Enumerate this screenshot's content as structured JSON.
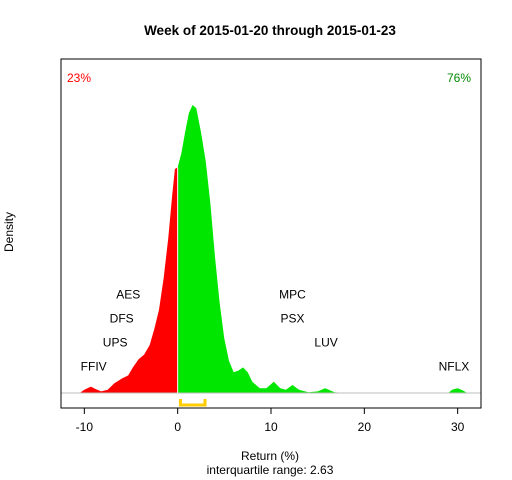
{
  "chart_data": {
    "type": "area",
    "title": "Week of 2015-01-20 through 2015-01-23",
    "xlabel": "Return (%)",
    "subxlabel": "interquartile range: 2.63",
    "ylabel": "Density",
    "xlim": [
      -12.5,
      32.5
    ],
    "ylim": [
      0,
      0.2
    ],
    "xticks": [
      -10,
      0,
      10,
      20,
      30
    ],
    "xtick_labels": [
      "-10",
      "0",
      "10",
      "20",
      "30"
    ],
    "split_at": 0,
    "negative_share": "23%",
    "positive_share": "76%",
    "negative_color": "#ff0000",
    "positive_color": "#00e600",
    "iqr": [
      0.3,
      2.93
    ],
    "iqr_color": "#ffcc00",
    "density": [
      [
        -10.5,
        0
      ],
      [
        -10,
        0.002
      ],
      [
        -9.3,
        0.004
      ],
      [
        -8.8,
        0.0025
      ],
      [
        -8.2,
        0.001
      ],
      [
        -7.5,
        0.002
      ],
      [
        -6.8,
        0.006
      ],
      [
        -6.0,
        0.009
      ],
      [
        -5.3,
        0.011
      ],
      [
        -4.8,
        0.016
      ],
      [
        -4.2,
        0.021
      ],
      [
        -3.6,
        0.024
      ],
      [
        -3.0,
        0.03
      ],
      [
        -2.5,
        0.04
      ],
      [
        -2.0,
        0.052
      ],
      [
        -1.5,
        0.072
      ],
      [
        -1.0,
        0.097
      ],
      [
        -0.6,
        0.123
      ],
      [
        -0.3,
        0.14
      ],
      [
        0,
        0.141
      ],
      [
        0.4,
        0.15
      ],
      [
        0.8,
        0.163
      ],
      [
        1.2,
        0.175
      ],
      [
        1.6,
        0.18
      ],
      [
        2.0,
        0.178
      ],
      [
        2.5,
        0.163
      ],
      [
        3.0,
        0.145
      ],
      [
        3.5,
        0.119
      ],
      [
        4.0,
        0.085
      ],
      [
        4.5,
        0.056
      ],
      [
        5.0,
        0.034
      ],
      [
        5.5,
        0.02
      ],
      [
        6.0,
        0.013
      ],
      [
        6.5,
        0.014
      ],
      [
        7.0,
        0.016
      ],
      [
        7.5,
        0.013
      ],
      [
        8.0,
        0.007
      ],
      [
        8.8,
        0.003
      ],
      [
        9.5,
        0.003
      ],
      [
        10.3,
        0.007
      ],
      [
        11.0,
        0.003
      ],
      [
        11.6,
        0.002
      ],
      [
        12.3,
        0.005
      ],
      [
        13.0,
        0.002
      ],
      [
        14.0,
        0.0005
      ],
      [
        15.0,
        0.001
      ],
      [
        15.8,
        0.003
      ],
      [
        16.8,
        0.0005
      ],
      [
        18.0,
        0
      ],
      [
        29.0,
        0
      ],
      [
        29.4,
        0.002
      ],
      [
        30.0,
        0.003
      ],
      [
        30.6,
        0.0015
      ],
      [
        31.0,
        0
      ]
    ],
    "annotations": [
      {
        "label": "FFIV",
        "x": -9.0,
        "y": 0.014
      },
      {
        "label": "UPS",
        "x": -6.7,
        "y": 0.029
      },
      {
        "label": "DFS",
        "x": -6.0,
        "y": 0.044
      },
      {
        "label": "AES",
        "x": -5.3,
        "y": 0.059
      },
      {
        "label": "MPC",
        "x": 12.3,
        "y": 0.059
      },
      {
        "label": "PSX",
        "x": 12.3,
        "y": 0.044
      },
      {
        "label": "LUV",
        "x": 15.9,
        "y": 0.029
      },
      {
        "label": "NFLX",
        "x": 29.6,
        "y": 0.014
      }
    ]
  }
}
